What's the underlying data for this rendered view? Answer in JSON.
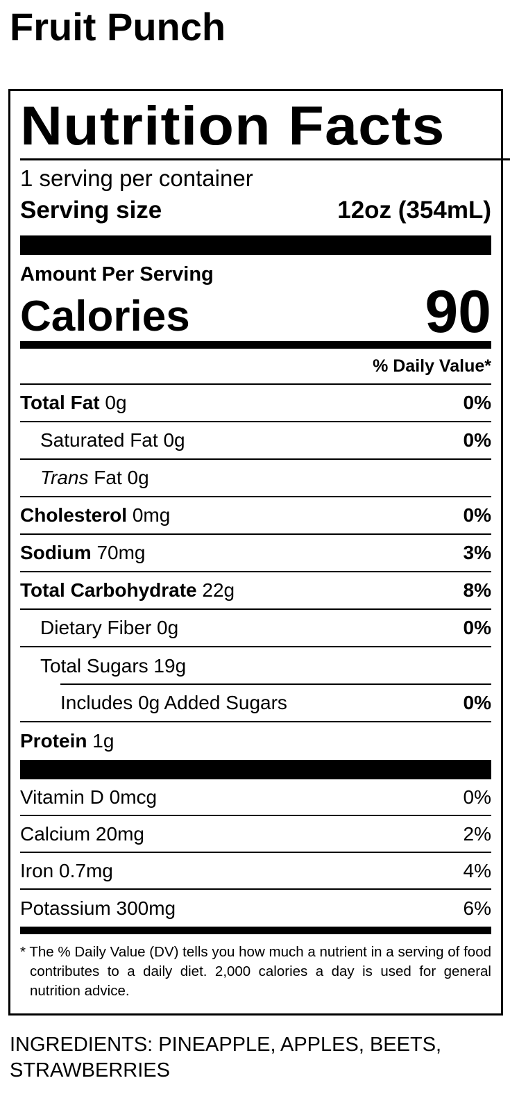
{
  "product_name": "Fruit Punch",
  "label": {
    "title": "Nutrition Facts",
    "servings_per_container": "1 serving per container",
    "serving_size_label": "Serving size",
    "serving_size_value": "12oz (354mL)",
    "amount_per_serving": "Amount Per Serving",
    "calories_label": "Calories",
    "calories_value": "90",
    "daily_value_header": "% Daily Value*",
    "nutrients": [
      {
        "name": "Total Fat",
        "amount": "0g",
        "dv": "0%"
      },
      {
        "name": "Saturated Fat",
        "amount": "0g",
        "dv": "0%"
      },
      {
        "name": "Trans",
        "name_suffix": "Fat",
        "amount": "0g",
        "dv": ""
      },
      {
        "name": "Cholesterol",
        "amount": "0mg",
        "dv": "0%"
      },
      {
        "name": "Sodium",
        "amount": "70mg",
        "dv": "3%"
      },
      {
        "name": "Total Carbohydrate",
        "amount": "22g",
        "dv": "8%"
      },
      {
        "name": "Dietary Fiber",
        "amount": "0g",
        "dv": "0%"
      },
      {
        "name": "Total Sugars",
        "amount": "19g",
        "dv": ""
      },
      {
        "name": "Includes 0g Added Sugars",
        "amount": "",
        "dv": "0%"
      },
      {
        "name": "Protein",
        "amount": "1g",
        "dv": ""
      }
    ],
    "vitamins": [
      {
        "name": "Vitamin D",
        "amount": "0mcg",
        "dv": "0%"
      },
      {
        "name": "Calcium",
        "amount": "20mg",
        "dv": "2%"
      },
      {
        "name": "Iron",
        "amount": "0.7mg",
        "dv": "4%"
      },
      {
        "name": "Potassium",
        "amount": "300mg",
        "dv": "6%"
      }
    ],
    "footnote": "* The % Daily Value (DV) tells you how much a nutrient in a serving of food contributes to a daily diet. 2,000 calories a day is used for general nutrition advice."
  },
  "ingredients": "INGREDIENTS: PINEAPPLE, APPLES, BEETS, STRAWBERRIES"
}
